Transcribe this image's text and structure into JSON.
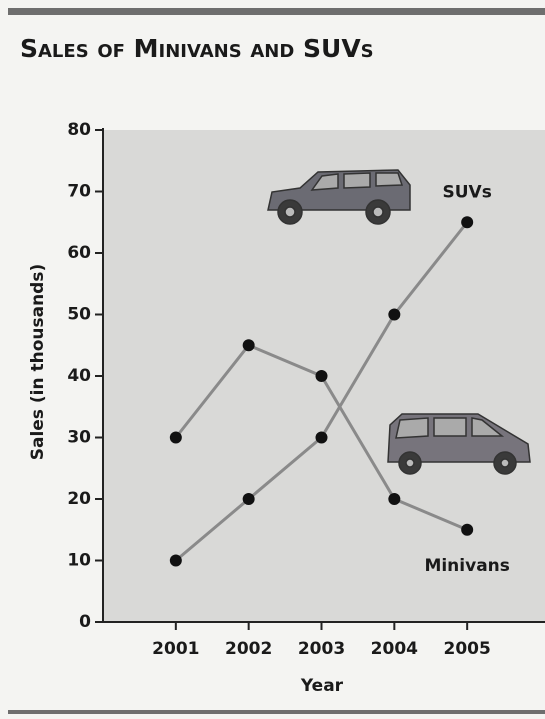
{
  "chart_data": {
    "type": "line",
    "title": "Sales of Minivans and SUVs",
    "x_label": "Year",
    "y_label": "Sales (in thousands)",
    "x": [
      2001,
      2002,
      2003,
      2004,
      2005
    ],
    "xlim": [
      2000,
      2006
    ],
    "xticks": [
      2001,
      2002,
      2003,
      2004,
      2005
    ],
    "ylim": [
      0,
      80
    ],
    "yticks": [
      0,
      10,
      20,
      30,
      40,
      50,
      60,
      70,
      80
    ],
    "series": [
      {
        "name": "Minivans",
        "color": "#8a8a8a",
        "values": [
          30,
          45,
          40,
          20,
          15
        ]
      },
      {
        "name": "SUVs",
        "color": "#8a8a8a",
        "values": [
          10,
          20,
          30,
          50,
          65
        ]
      }
    ]
  }
}
